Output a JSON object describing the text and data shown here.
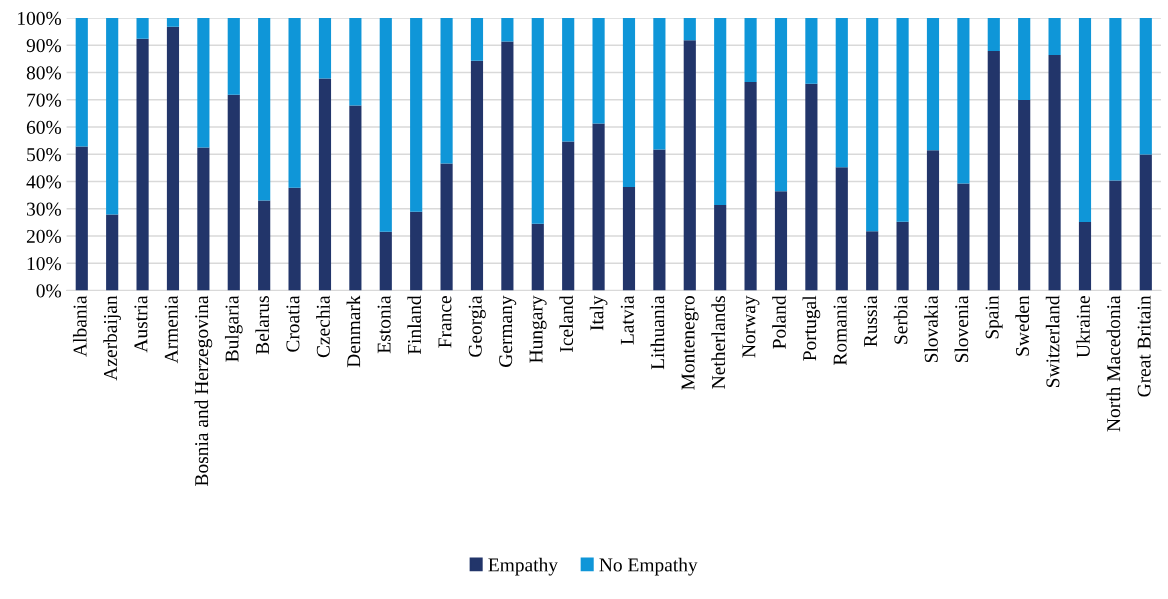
{
  "chart_data": {
    "type": "bar",
    "stacked": true,
    "categories": [
      "Albania",
      "Azerbaijan",
      "Austria",
      "Armenia",
      "Bosnia and Herzegovina",
      "Bulgaria",
      "Belarus",
      "Croatia",
      "Czechia",
      "Denmark",
      "Estonia",
      "Finland",
      "France",
      "Georgia",
      "Germany",
      "Hungary",
      "Iceland",
      "Italy",
      "Latvia",
      "Lithuania",
      "Montenegro",
      "Netherlands",
      "Norway",
      "Poland",
      "Portugal",
      "Romania",
      "Russia",
      "Serbia",
      "Slovakia",
      "Slovenia",
      "Spain",
      "Sweden",
      "Switzerland",
      "Ukraine",
      "North Macedonia",
      "Great Britain"
    ],
    "series": [
      {
        "name": "Empathy",
        "color": "#22356a",
        "values": [
          52.8,
          27.9,
          92.4,
          96.8,
          52.5,
          71.8,
          33.0,
          37.7,
          77.8,
          67.9,
          21.6,
          28.9,
          46.6,
          84.3,
          91.4,
          24.5,
          54.7,
          61.3,
          38.0,
          51.7,
          91.8,
          31.4,
          76.5,
          36.4,
          75.9,
          45.2,
          21.7,
          25.2,
          51.5,
          39.3,
          87.9,
          69.9,
          86.4,
          25.1,
          40.4,
          49.9
        ]
      },
      {
        "name": "No Empathy",
        "color": "#0f96d8",
        "values": [
          47.2,
          72.1,
          7.6,
          3.2,
          47.5,
          28.2,
          67.0,
          62.3,
          22.2,
          32.1,
          78.4,
          71.1,
          53.4,
          15.7,
          8.6,
          75.5,
          45.3,
          38.7,
          62.0,
          48.3,
          8.2,
          68.6,
          23.5,
          63.6,
          24.1,
          54.8,
          78.3,
          74.8,
          48.5,
          60.7,
          12.1,
          30.1,
          13.6,
          74.9,
          59.6,
          50.1
        ]
      }
    ],
    "ylim": [
      0,
      100
    ],
    "yticks": [
      {
        "value": 0,
        "label": "0%"
      },
      {
        "value": 10,
        "label": "10%"
      },
      {
        "value": 20,
        "label": "20%"
      },
      {
        "value": 30,
        "label": "30%"
      },
      {
        "value": 40,
        "label": "40%"
      },
      {
        "value": 50,
        "label": "50%"
      },
      {
        "value": 60,
        "label": "60%"
      },
      {
        "value": 70,
        "label": "70%"
      },
      {
        "value": 80,
        "label": "80%"
      },
      {
        "value": 90,
        "label": "90%"
      },
      {
        "value": 100,
        "label": "100%"
      }
    ],
    "grid": "y",
    "legend": "bottom"
  }
}
